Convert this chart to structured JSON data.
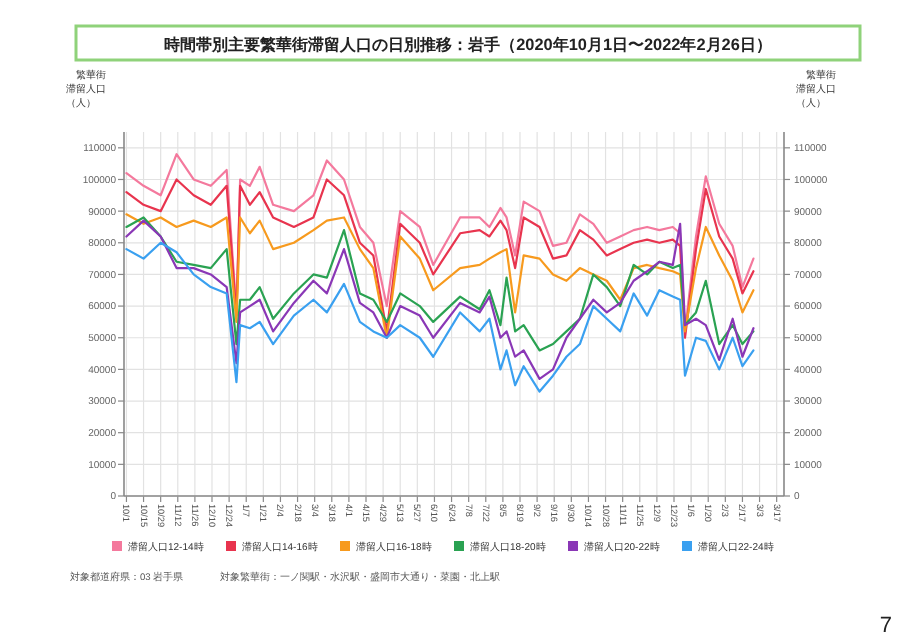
{
  "chart_data": {
    "type": "line",
    "title": "時間帯別主要繁華街滞留人口の日別推移：岩手（2020年10月1日〜2022年2月26日）",
    "ylabel": "繁華街滞留人口（人）",
    "y2label": "繁華街滞留人口（人）",
    "annotations": [
      "対象都道府県：03 岩手県",
      "対象繁華街：一ノ関駅・水沢駅・盛岡市大通り・菜園・北上駅",
      "7"
    ],
    "x": [
      "2020-10-01",
      "2020-10-15",
      "2020-10-29",
      "2020-11-11",
      "2020-11-25",
      "2020-12-09",
      "2020-12-22",
      "2020-12-30",
      "2021-01-02",
      "2021-01-10",
      "2021-01-18",
      "2021-01-29",
      "2021-02-15",
      "2021-03-03",
      "2021-03-14",
      "2021-03-28",
      "2021-04-10",
      "2021-04-21",
      "2021-05-02",
      "2021-05-13",
      "2021-05-29",
      "2021-06-09",
      "2021-07-01",
      "2021-07-17",
      "2021-07-25",
      "2021-08-03",
      "2021-08-08",
      "2021-08-15",
      "2021-08-22",
      "2021-09-04",
      "2021-09-15",
      "2021-09-26",
      "2021-10-07",
      "2021-10-18",
      "2021-10-29",
      "2021-11-09",
      "2021-11-20",
      "2021-12-01",
      "2021-12-11",
      "2021-12-22",
      "2021-12-28",
      "2022-01-01",
      "2022-01-10",
      "2022-01-18",
      "2022-01-29",
      "2022-02-09",
      "2022-02-17",
      "2022-02-26"
    ],
    "series": [
      {
        "name": "滞留人口12-14時",
        "color": "#f4799d",
        "values": [
          102000,
          98000,
          95000,
          108000,
          100000,
          98000,
          103000,
          58000,
          100000,
          98000,
          104000,
          92000,
          90000,
          95000,
          106000,
          100000,
          85000,
          80000,
          60000,
          90000,
          85000,
          73000,
          88000,
          88000,
          85000,
          91000,
          88000,
          76000,
          93000,
          90000,
          79000,
          80000,
          89000,
          86000,
          80000,
          82000,
          84000,
          85000,
          84000,
          85000,
          83000,
          52000,
          82000,
          101000,
          86000,
          79000,
          66000,
          75000
        ]
      },
      {
        "name": "滞留人口14-16時",
        "color": "#e8344e",
        "values": [
          96000,
          92000,
          90000,
          100000,
          95000,
          92000,
          98000,
          57000,
          98000,
          92000,
          96000,
          88000,
          85000,
          88000,
          100000,
          95000,
          80000,
          76000,
          52000,
          86000,
          80000,
          70000,
          83000,
          84000,
          82000,
          87000,
          84000,
          72000,
          88000,
          85000,
          75000,
          76000,
          84000,
          81000,
          76000,
          78000,
          80000,
          81000,
          80000,
          81000,
          79000,
          50000,
          78000,
          97000,
          82000,
          75000,
          64000,
          71000
        ]
      },
      {
        "name": "滞留人口16-18時",
        "color": "#f79a1e",
        "values": [
          89000,
          86000,
          88000,
          85000,
          87000,
          85000,
          88000,
          55000,
          88000,
          83000,
          87000,
          78000,
          80000,
          84000,
          87000,
          88000,
          78000,
          72000,
          50000,
          82000,
          75000,
          65000,
          72000,
          73000,
          75000,
          77000,
          78000,
          58000,
          76000,
          75000,
          70000,
          68000,
          72000,
          70000,
          68000,
          62000,
          72000,
          73000,
          72000,
          71000,
          70000,
          52000,
          72000,
          85000,
          76000,
          68000,
          58000,
          65000
        ]
      },
      {
        "name": "滞留人口18-20時",
        "color": "#2aa252",
        "values": [
          85000,
          88000,
          82000,
          74000,
          73000,
          72000,
          78000,
          48000,
          62000,
          62000,
          66000,
          56000,
          64000,
          70000,
          69000,
          84000,
          64000,
          62000,
          55000,
          64000,
          60000,
          55000,
          63000,
          59000,
          65000,
          54000,
          69000,
          52000,
          54000,
          46000,
          48000,
          52000,
          56000,
          70000,
          66000,
          60000,
          73000,
          70000,
          74000,
          72000,
          73000,
          54000,
          58000,
          68000,
          48000,
          54000,
          48000,
          52000
        ]
      },
      {
        "name": "滞留人口20-22時",
        "color": "#8a37b6",
        "values": [
          82000,
          87000,
          82000,
          72000,
          72000,
          70000,
          66000,
          42000,
          58000,
          60000,
          62000,
          52000,
          61000,
          68000,
          64000,
          78000,
          61000,
          58000,
          50000,
          60000,
          57000,
          50000,
          61000,
          58000,
          63000,
          50000,
          52000,
          44000,
          46000,
          37000,
          40000,
          50000,
          56000,
          62000,
          58000,
          61000,
          68000,
          71000,
          74000,
          73000,
          86000,
          54000,
          56000,
          54000,
          43000,
          56000,
          44000,
          53000
        ]
      },
      {
        "name": "滞留人口22-24時",
        "color": "#3aa0f0",
        "values": [
          78000,
          75000,
          80000,
          77000,
          70000,
          66000,
          64000,
          36000,
          54000,
          53000,
          55000,
          48000,
          57000,
          62000,
          58000,
          67000,
          55000,
          52000,
          50000,
          54000,
          50000,
          44000,
          58000,
          52000,
          56000,
          40000,
          46000,
          35000,
          41000,
          33000,
          38000,
          44000,
          48000,
          60000,
          56000,
          52000,
          64000,
          57000,
          65000,
          63000,
          62000,
          38000,
          50000,
          49000,
          40000,
          50000,
          41000,
          46000
        ]
      }
    ],
    "xlim": [
      "2020-09-29",
      "2022-03-23"
    ],
    "xticks": [
      {
        "value": "2020-10-01",
        "label": "10/1"
      },
      {
        "value": "2020-10-15",
        "label": "10/15"
      },
      {
        "value": "2020-10-29",
        "label": "10/29"
      },
      {
        "value": "2020-11-12",
        "label": "11/12"
      },
      {
        "value": "2020-11-26",
        "label": "11/26"
      },
      {
        "value": "2020-12-10",
        "label": "12/10"
      },
      {
        "value": "2020-12-24",
        "label": "12/24"
      },
      {
        "value": "2021-01-07",
        "label": "1/7"
      },
      {
        "value": "2021-01-21",
        "label": "1/21"
      },
      {
        "value": "2021-02-04",
        "label": "2/4"
      },
      {
        "value": "2021-02-18",
        "label": "2/18"
      },
      {
        "value": "2021-03-04",
        "label": "3/4"
      },
      {
        "value": "2021-03-18",
        "label": "3/18"
      },
      {
        "value": "2021-04-01",
        "label": "4/1"
      },
      {
        "value": "2021-04-15",
        "label": "4/15"
      },
      {
        "value": "2021-04-29",
        "label": "4/29"
      },
      {
        "value": "2021-05-13",
        "label": "5/13"
      },
      {
        "value": "2021-05-27",
        "label": "5/27"
      },
      {
        "value": "2021-06-10",
        "label": "6/10"
      },
      {
        "value": "2021-06-24",
        "label": "6/24"
      },
      {
        "value": "2021-07-08",
        "label": "7/8"
      },
      {
        "value": "2021-07-22",
        "label": "7/22"
      },
      {
        "value": "2021-08-05",
        "label": "8/5"
      },
      {
        "value": "2021-08-19",
        "label": "8/19"
      },
      {
        "value": "2021-09-02",
        "label": "9/2"
      },
      {
        "value": "2021-09-16",
        "label": "9/16"
      },
      {
        "value": "2021-09-30",
        "label": "9/30"
      },
      {
        "value": "2021-10-14",
        "label": "10/14"
      },
      {
        "value": "2021-10-28",
        "label": "10/28"
      },
      {
        "value": "2021-11-11",
        "label": "11/11"
      },
      {
        "value": "2021-11-25",
        "label": "11/25"
      },
      {
        "value": "2021-12-09",
        "label": "12/9"
      },
      {
        "value": "2021-12-23",
        "label": "12/23"
      },
      {
        "value": "2022-01-06",
        "label": "1/6"
      },
      {
        "value": "2022-01-20",
        "label": "1/20"
      },
      {
        "value": "2022-02-03",
        "label": "2/3"
      },
      {
        "value": "2022-02-17",
        "label": "2/17"
      },
      {
        "value": "2022-03-03",
        "label": "3/3"
      },
      {
        "value": "2022-03-17",
        "label": "3/17"
      }
    ],
    "ylim": [
      0,
      115000
    ],
    "yticks": [
      0,
      10000,
      20000,
      30000,
      40000,
      50000,
      60000,
      70000,
      80000,
      90000,
      100000,
      110000
    ],
    "y2lim": [
      0,
      115000
    ],
    "y2ticks": [
      0,
      10000,
      20000,
      30000,
      40000,
      50000,
      60000,
      70000,
      80000,
      90000,
      100000,
      110000
    ],
    "grid": true,
    "legend": "bottom"
  }
}
